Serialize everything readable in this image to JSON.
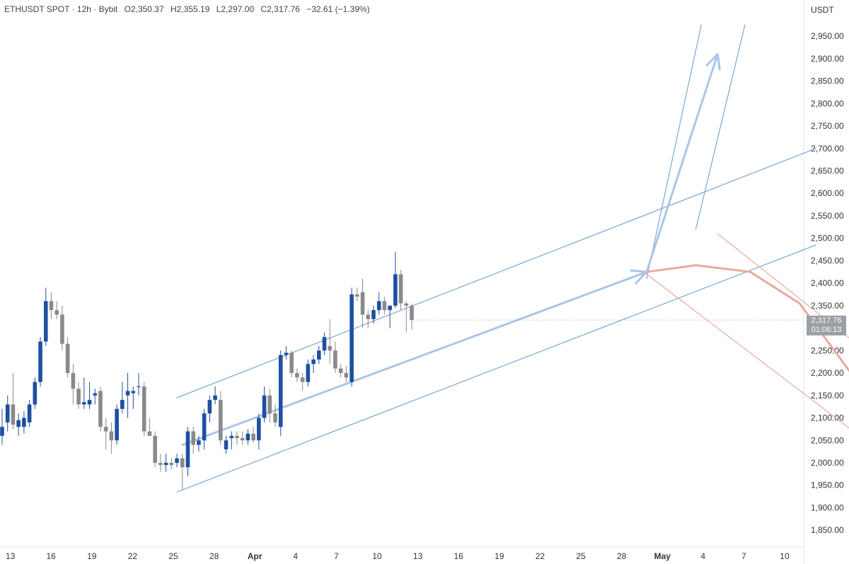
{
  "header": {
    "symbol": "ETHUSDT SPOT · 12h · Bybit",
    "open": "O2,350.37",
    "high": "H2,355.19",
    "low": "L2,297.00",
    "close": "C2,317.76",
    "change": "−32.61 (−1.39%)"
  },
  "price_axis": {
    "unit": "USDT",
    "ticks": [
      "2,950.00",
      "2,900.00",
      "2,850.00",
      "2,800.00",
      "2,750.00",
      "2,700.00",
      "2,650.00",
      "2,600.00",
      "2,550.00",
      "2,500.00",
      "2,450.00",
      "2,400.00",
      "2,350.00",
      "2,300.00",
      "2,250.00",
      "2,200.00",
      "2,150.00",
      "2,100.00",
      "2,050.00",
      "2,000.00",
      "1,950.00",
      "1,900.00",
      "1,850.00"
    ]
  },
  "last_price": {
    "value": "2,317.76",
    "countdown": "01:06:13"
  },
  "colors": {
    "bull": "#1e4fa0",
    "bear": "#8a8a8a",
    "channel": "#7ba7d0",
    "bull_arrow": "#a9c6e6",
    "bear_path": "#e8aaa0",
    "text": "#333333"
  },
  "chart_data": {
    "type": "candlestick",
    "ylim": [
      1800,
      3000
    ],
    "x_tick_labels": [
      "13",
      "16",
      "19",
      "22",
      "25",
      "28",
      "Apr",
      "4",
      "7",
      "10",
      "13",
      "16",
      "19",
      "22",
      "25",
      "28",
      "May",
      "4",
      "7",
      "10"
    ],
    "candles": [
      {
        "o": 2060,
        "h": 2120,
        "l": 2040,
        "c": 2080
      },
      {
        "o": 2090,
        "h": 2150,
        "l": 2070,
        "c": 2130
      },
      {
        "o": 2130,
        "h": 2200,
        "l": 2075,
        "c": 2085
      },
      {
        "o": 2080,
        "h": 2110,
        "l": 2060,
        "c": 2095
      },
      {
        "o": 2080,
        "h": 2115,
        "l": 2065,
        "c": 2100
      },
      {
        "o": 2090,
        "h": 2140,
        "l": 2080,
        "c": 2130
      },
      {
        "o": 2130,
        "h": 2190,
        "l": 2120,
        "c": 2180
      },
      {
        "o": 2180,
        "h": 2280,
        "l": 2170,
        "c": 2270
      },
      {
        "o": 2270,
        "h": 2390,
        "l": 2260,
        "c": 2360
      },
      {
        "o": 2360,
        "h": 2380,
        "l": 2320,
        "c": 2340
      },
      {
        "o": 2340,
        "h": 2360,
        "l": 2320,
        "c": 2330
      },
      {
        "o": 2330,
        "h": 2350,
        "l": 2250,
        "c": 2265
      },
      {
        "o": 2265,
        "h": 2280,
        "l": 2190,
        "c": 2200
      },
      {
        "o": 2200,
        "h": 2220,
        "l": 2130,
        "c": 2165
      },
      {
        "o": 2165,
        "h": 2180,
        "l": 2120,
        "c": 2130
      },
      {
        "o": 2130,
        "h": 2190,
        "l": 2120,
        "c": 2135
      },
      {
        "o": 2130,
        "h": 2180,
        "l": 2120,
        "c": 2140
      },
      {
        "o": 2150,
        "h": 2165,
        "l": 2130,
        "c": 2155
      },
      {
        "o": 2160,
        "h": 2170,
        "l": 2070,
        "c": 2080
      },
      {
        "o": 2080,
        "h": 2100,
        "l": 2030,
        "c": 2070
      },
      {
        "o": 2070,
        "h": 2090,
        "l": 2020,
        "c": 2050
      },
      {
        "o": 2050,
        "h": 2130,
        "l": 2040,
        "c": 2120
      },
      {
        "o": 2120,
        "h": 2180,
        "l": 2110,
        "c": 2140
      },
      {
        "o": 2150,
        "h": 2200,
        "l": 2100,
        "c": 2160
      },
      {
        "o": 2155,
        "h": 2170,
        "l": 2120,
        "c": 2160
      },
      {
        "o": 2170,
        "h": 2200,
        "l": 2150,
        "c": 2170
      },
      {
        "o": 2170,
        "h": 2180,
        "l": 2060,
        "c": 2070
      },
      {
        "o": 2070,
        "h": 2100,
        "l": 2060,
        "c": 2060
      },
      {
        "o": 2060,
        "h": 2070,
        "l": 1990,
        "c": 2000
      },
      {
        "o": 2000,
        "h": 2020,
        "l": 1980,
        "c": 1995
      },
      {
        "o": 1995,
        "h": 2020,
        "l": 1980,
        "c": 2000
      },
      {
        "o": 2000,
        "h": 2010,
        "l": 1985,
        "c": 1995
      },
      {
        "o": 2000,
        "h": 2020,
        "l": 1990,
        "c": 2010
      },
      {
        "o": 2010,
        "h": 2020,
        "l": 1940,
        "c": 1990
      },
      {
        "o": 1990,
        "h": 2080,
        "l": 1970,
        "c": 2070
      },
      {
        "o": 2070,
        "h": 2080,
        "l": 2020,
        "c": 2040
      },
      {
        "o": 2040,
        "h": 2060,
        "l": 2025,
        "c": 2050
      },
      {
        "o": 2050,
        "h": 2120,
        "l": 2030,
        "c": 2110
      },
      {
        "o": 2110,
        "h": 2150,
        "l": 2090,
        "c": 2140
      },
      {
        "o": 2140,
        "h": 2170,
        "l": 2130,
        "c": 2150
      },
      {
        "o": 2140,
        "h": 2160,
        "l": 2040,
        "c": 2050
      },
      {
        "o": 2030,
        "h": 2060,
        "l": 2020,
        "c": 2050
      },
      {
        "o": 2055,
        "h": 2070,
        "l": 2030,
        "c": 2060
      },
      {
        "o": 2060,
        "h": 2070,
        "l": 2040,
        "c": 2055
      },
      {
        "o": 2055,
        "h": 2070,
        "l": 2040,
        "c": 2050
      },
      {
        "o": 2050,
        "h": 2075,
        "l": 2040,
        "c": 2065
      },
      {
        "o": 2065,
        "h": 2080,
        "l": 2045,
        "c": 2050
      },
      {
        "o": 2050,
        "h": 2110,
        "l": 2030,
        "c": 2100
      },
      {
        "o": 2100,
        "h": 2170,
        "l": 2090,
        "c": 2150
      },
      {
        "o": 2150,
        "h": 2165,
        "l": 2090,
        "c": 2110
      },
      {
        "o": 2110,
        "h": 2130,
        "l": 2080,
        "c": 2090
      },
      {
        "o": 2080,
        "h": 2250,
        "l": 2060,
        "c": 2240
      },
      {
        "o": 2240,
        "h": 2260,
        "l": 2230,
        "c": 2245
      },
      {
        "o": 2245,
        "h": 2250,
        "l": 2190,
        "c": 2200
      },
      {
        "o": 2200,
        "h": 2210,
        "l": 2180,
        "c": 2190
      },
      {
        "o": 2190,
        "h": 2200,
        "l": 2160,
        "c": 2180
      },
      {
        "o": 2180,
        "h": 2230,
        "l": 2170,
        "c": 2220
      },
      {
        "o": 2220,
        "h": 2240,
        "l": 2200,
        "c": 2230
      },
      {
        "o": 2230,
        "h": 2260,
        "l": 2220,
        "c": 2250
      },
      {
        "o": 2250,
        "h": 2290,
        "l": 2240,
        "c": 2280
      },
      {
        "o": 2260,
        "h": 2320,
        "l": 2220,
        "c": 2250
      },
      {
        "o": 2250,
        "h": 2270,
        "l": 2200,
        "c": 2210
      },
      {
        "o": 2210,
        "h": 2220,
        "l": 2190,
        "c": 2200
      },
      {
        "o": 2200,
        "h": 2215,
        "l": 2180,
        "c": 2190
      },
      {
        "o": 2180,
        "h": 2390,
        "l": 2170,
        "c": 2375
      },
      {
        "o": 2375,
        "h": 2390,
        "l": 2360,
        "c": 2370
      },
      {
        "o": 2380,
        "h": 2410,
        "l": 2300,
        "c": 2330
      },
      {
        "o": 2330,
        "h": 2340,
        "l": 2300,
        "c": 2320
      },
      {
        "o": 2320,
        "h": 2350,
        "l": 2310,
        "c": 2340
      },
      {
        "o": 2340,
        "h": 2380,
        "l": 2330,
        "c": 2360
      },
      {
        "o": 2360,
        "h": 2370,
        "l": 2330,
        "c": 2340
      },
      {
        "o": 2340,
        "h": 2350,
        "l": 2300,
        "c": 2350
      },
      {
        "o": 2350,
        "h": 2470,
        "l": 2345,
        "c": 2420
      },
      {
        "o": 2420,
        "h": 2430,
        "l": 2340,
        "c": 2355
      },
      {
        "o": 2355,
        "h": 2360,
        "l": 2290,
        "c": 2350
      },
      {
        "o": 2350,
        "h": 2355,
        "l": 2297,
        "c": 2318
      }
    ],
    "channel": [
      {
        "from": {
          "bar": 32,
          "p": 2145
        },
        "to": {
          "bar": 149,
          "p": 2700
        }
      },
      {
        "from": {
          "bar": 32,
          "p": 1935
        },
        "to": {
          "bar": 149,
          "p": 2485
        }
      }
    ],
    "bull_projection": [
      {
        "bar": 33,
        "p": 2040
      },
      {
        "bar": 118,
        "p": 2425
      },
      {
        "bar": 131,
        "p": 2910
      }
    ],
    "bull_channel": [
      {
        "from": {
          "bar": 118,
          "p": 2410
        },
        "to": {
          "bar": 128,
          "p": 2975
        }
      },
      {
        "from": {
          "bar": 127,
          "p": 2520
        },
        "to": {
          "bar": 136,
          "p": 2975
        }
      }
    ],
    "bear_projection": [
      {
        "bar": 118,
        "p": 2425
      },
      {
        "bar": 127,
        "p": 2440
      },
      {
        "bar": 137,
        "p": 2425
      },
      {
        "bar": 146,
        "p": 2355
      },
      {
        "bar": 166,
        "p": 2025
      }
    ],
    "bear_channel": [
      {
        "from": {
          "bar": 131,
          "p": 2510
        },
        "to": {
          "bar": 171,
          "p": 2125
        }
      },
      {
        "from": {
          "bar": 118,
          "p": 2420
        },
        "to": {
          "bar": 164,
          "p": 1995
        }
      }
    ]
  }
}
